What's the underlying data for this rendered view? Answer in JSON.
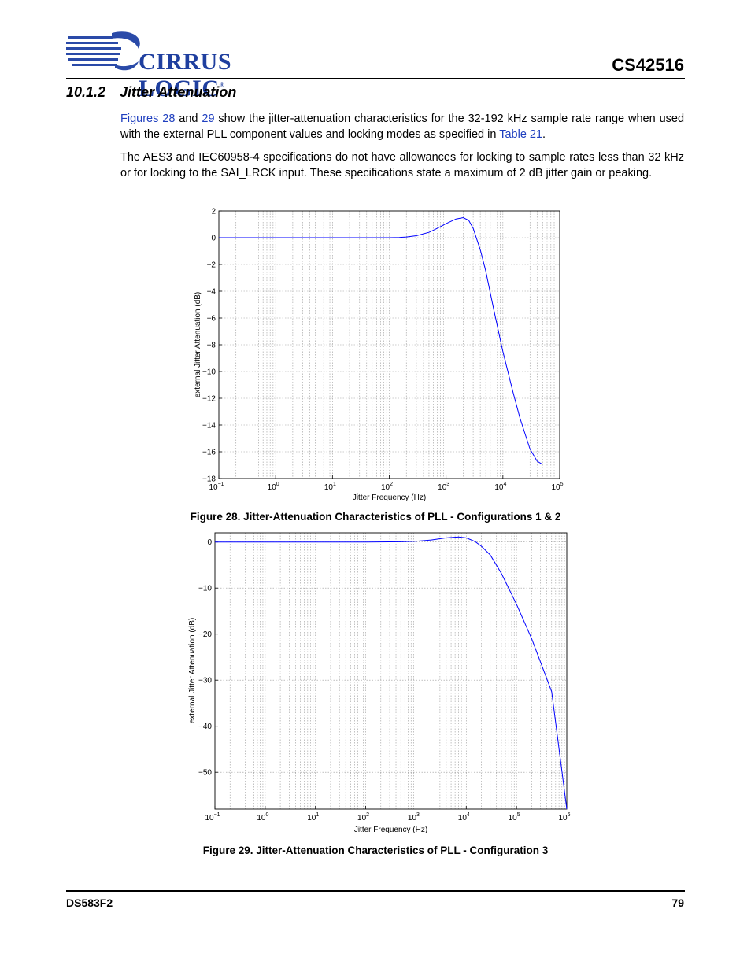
{
  "header": {
    "logo_text": "CIRRUS LOGIC",
    "logo_mark": "®",
    "part_number": "CS42516"
  },
  "section": {
    "number": "10.1.2",
    "title": "Jitter Attenuation"
  },
  "paragraph1": {
    "link_figures": "Figures 28",
    "and": " and ",
    "link_29": "29",
    "text_a": " show the jitter-attenuation characteristics for the 32-192 kHz sample rate range when used with the external PLL component values and locking modes as specified in ",
    "link_table": "Table 21",
    "text_b": "."
  },
  "paragraph2": "The AES3 and IEC60958-4 specifications do not have allowances for locking to sample rates less than 32 kHz or for locking to the SAI_LRCK input. These specifications state a maximum of 2 dB jitter gain or peaking.",
  "figure1": {
    "caption": "Figure 28.  Jitter-Attenuation Characteristics of PLL - Configurations 1 & 2"
  },
  "figure2": {
    "caption": "Figure 29.  Jitter-Attenuation Characteristics of PLL - Configuration 3"
  },
  "footer": {
    "doc_id": "DS583F2",
    "page_number": "79"
  },
  "colors": {
    "curve": "#0000ff",
    "link": "#1f3fbf",
    "logo": "#1f3f9f"
  },
  "chart_data": [
    {
      "type": "line",
      "title": "",
      "xlabel": "Jitter Frequency (Hz)",
      "ylabel": "external Jitter Attenuation (dB)",
      "xscale": "log",
      "xlim": [
        0.1,
        100000
      ],
      "ylim": [
        -18,
        2
      ],
      "x_ticks": [
        "10^-1",
        "10^0",
        "10^1",
        "10^2",
        "10^3",
        "10^4",
        "10^5"
      ],
      "y_ticks": [
        "2",
        "0",
        "−2",
        "−4",
        "−6",
        "−8",
        "−10",
        "−12",
        "−14",
        "−16",
        "−18"
      ],
      "grid": true,
      "series": [
        {
          "x": [
            0.1,
            1,
            10,
            100,
            150,
            200,
            300,
            500,
            700,
            1000,
            1500,
            2000,
            2500,
            3000,
            4000,
            5000,
            7000,
            10000,
            15000,
            20000,
            30000,
            40000,
            48000
          ],
          "y": [
            0,
            0,
            0,
            0,
            0.02,
            0.05,
            0.15,
            0.4,
            0.7,
            1.05,
            1.4,
            1.5,
            1.3,
            0.7,
            -0.9,
            -2.5,
            -5.5,
            -8.5,
            -11.5,
            -13.5,
            -15.8,
            -16.7,
            -16.9
          ]
        }
      ]
    },
    {
      "type": "line",
      "title": "",
      "xlabel": "Jitter Frequency (Hz)",
      "ylabel": "external Jitter Attenuation (dB)",
      "xscale": "log",
      "xlim": [
        0.1,
        1000000
      ],
      "ylim": [
        -58,
        2
      ],
      "x_ticks": [
        "10^-1",
        "10^0",
        "10^1",
        "10^2",
        "10^3",
        "10^4",
        "10^5",
        "10^6"
      ],
      "y_ticks": [
        "0",
        "−10",
        "−20",
        "−30",
        "−40",
        "−50"
      ],
      "grid": true,
      "series": [
        {
          "x": [
            0.1,
            1,
            10,
            100,
            500,
            1000,
            2000,
            4000,
            7000,
            10000,
            15000,
            20000,
            30000,
            50000,
            100000,
            200000,
            500000,
            1000000
          ],
          "y": [
            0,
            0,
            0,
            0,
            0.05,
            0.15,
            0.45,
            0.9,
            1.1,
            0.9,
            0.1,
            -0.9,
            -2.8,
            -6.8,
            -13.5,
            -21,
            -32.5,
            -58
          ]
        }
      ]
    }
  ]
}
